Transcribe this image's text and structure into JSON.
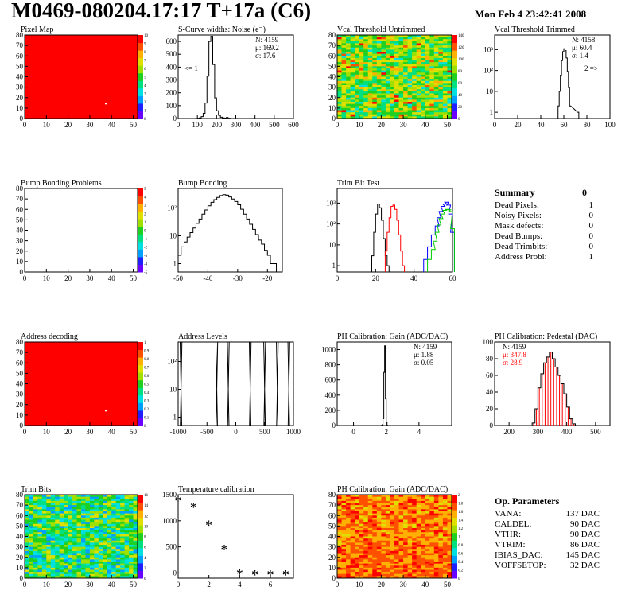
{
  "header": {
    "title": "M0469-080204.17:17 T+17a (C6)",
    "date": "Mon Feb  4 23:42:41 2008"
  },
  "summary": {
    "title": "Summary",
    "total": "0",
    "rows": [
      {
        "label": "Dead Pixels:",
        "value": "1"
      },
      {
        "label": "Noisy Pixels:",
        "value": "0"
      },
      {
        "label": "Mask defects:",
        "value": "0"
      },
      {
        "label": "Dead Bumps:",
        "value": "0"
      },
      {
        "label": "Dead Trimbits:",
        "value": "0"
      },
      {
        "label": "Address Probl:",
        "value": "1"
      }
    ]
  },
  "op_params": {
    "title": "Op. Parameters",
    "rows": [
      {
        "label": "VANA:",
        "value": "137 DAC"
      },
      {
        "label": "CALDEL:",
        "value": "90 DAC"
      },
      {
        "label": "VTHR:",
        "value": "90 DAC"
      },
      {
        "label": "VTRIM:",
        "value": "86 DAC"
      },
      {
        "label": "IBIAS_DAC:",
        "value": "145 DAC"
      },
      {
        "label": "VOFFSETOP:",
        "value": "32 DAC"
      }
    ]
  },
  "colors": {
    "palette": [
      "#6a00ff",
      "#2020ff",
      "#00a0ff",
      "#00e0e0",
      "#00e080",
      "#20d020",
      "#a0e000",
      "#e0e000",
      "#ffb000",
      "#ff5000",
      "#ff0000"
    ],
    "red": "#ff0000",
    "black": "#000000",
    "green": "#00cc00",
    "blue": "#0000ff"
  },
  "chart_data": [
    {
      "id": "pixel-map",
      "type": "heatmap",
      "title": "Pixel Map",
      "xlim": [
        0,
        52
      ],
      "ylim": [
        0,
        80
      ],
      "xticks": [
        "0",
        "10",
        "20",
        "30",
        "40",
        "50"
      ],
      "yticks": [
        "0",
        "10",
        "20",
        "30",
        "40",
        "50",
        "60",
        "70",
        "80"
      ],
      "zlim": [
        0,
        10
      ],
      "zticks": [
        "0",
        "1",
        "2",
        "3",
        "4",
        "5",
        "6",
        "7",
        "8",
        "9",
        "10"
      ],
      "fill": "uniform-max",
      "dead_pixel": [
        37,
        15
      ]
    },
    {
      "id": "scurve",
      "type": "histogram",
      "title": "S-Curve widths: Noise (e⁻)",
      "xlim": [
        0,
        600
      ],
      "ylim": [
        0,
        650
      ],
      "xticks": [
        "0",
        "100",
        "200",
        "300",
        "400",
        "500",
        "600"
      ],
      "yticks": [
        "0",
        "100",
        "200",
        "300",
        "400",
        "500",
        "600"
      ],
      "stats": {
        "N": "4159",
        "mu": "169.2",
        "sigma": "17.6"
      },
      "annotation": "<= 1",
      "bins_x": [
        100,
        110,
        120,
        130,
        140,
        150,
        160,
        170,
        180,
        190,
        200,
        210,
        220,
        230,
        240,
        250,
        260,
        270
      ],
      "bins_y": [
        2,
        5,
        15,
        40,
        120,
        330,
        600,
        640,
        420,
        160,
        60,
        25,
        10,
        5,
        3,
        8,
        2,
        0
      ]
    },
    {
      "id": "vcal-untrimmed",
      "type": "heatmap",
      "title": "Vcal Threshold Untrimmed",
      "xlim": [
        0,
        52
      ],
      "ylim": [
        0,
        80
      ],
      "xticks": [
        "0",
        "10",
        "20",
        "30",
        "40",
        "50"
      ],
      "yticks": [
        "0",
        "10",
        "20",
        "30",
        "40",
        "50",
        "60",
        "70",
        "80"
      ],
      "zlim": [
        0,
        140
      ],
      "zticks": [
        "0",
        "20",
        "40",
        "60",
        "80",
        "100",
        "120",
        "140"
      ],
      "fill": "noise-yellow"
    },
    {
      "id": "vcal-trimmed",
      "type": "histogram",
      "title": "Vcal Threshold Trimmed",
      "xlim": [
        0,
        100
      ],
      "log_y": true,
      "xticks": [
        "0",
        "20",
        "40",
        "60",
        "80",
        "100"
      ],
      "yticks": [
        "1",
        "10",
        "10²",
        "10³"
      ],
      "stats": {
        "N": "4158",
        "mu": "60.4",
        "sigma": "1.4"
      },
      "annotation": "2 =>",
      "bins_x": [
        55,
        56,
        57,
        58,
        59,
        60,
        61,
        62,
        63,
        64,
        65,
        72
      ],
      "bins_y": [
        2,
        10,
        60,
        300,
        800,
        1100,
        900,
        400,
        90,
        15,
        2,
        1
      ]
    },
    {
      "id": "bump-problems",
      "type": "heatmap",
      "title": "Bump Bonding Problems",
      "xlim": [
        0,
        52
      ],
      "ylim": [
        0,
        80
      ],
      "xticks": [
        "0",
        "10",
        "20",
        "30",
        "40",
        "50"
      ],
      "yticks": [
        "0",
        "10",
        "20",
        "30",
        "40",
        "50",
        "60",
        "70",
        "80"
      ],
      "zlim": [
        -5,
        5
      ],
      "zticks": [
        "-5",
        "-4",
        "-3",
        "-2",
        "-1",
        "0",
        "1",
        "2",
        "3",
        "4",
        "5"
      ],
      "fill": "empty"
    },
    {
      "id": "bump-bonding",
      "type": "histogram",
      "title": "Bump Bonding",
      "xlim": [
        -50,
        -15
      ],
      "log_y": true,
      "xticks": [
        "-50",
        "-40",
        "-30",
        "-20"
      ],
      "yticks": [
        "1",
        "10",
        "10²"
      ],
      "bins_x": [
        -50,
        -49,
        -48,
        -47,
        -46,
        -45,
        -44,
        -43,
        -42,
        -41,
        -40,
        -39,
        -38,
        -37,
        -36,
        -35,
        -34,
        -33,
        -32,
        -31,
        -30,
        -29,
        -28,
        -27,
        -26,
        -25,
        -24,
        -23,
        -22,
        -21,
        -20,
        -19,
        -18
      ],
      "bins_y": [
        2,
        4,
        6,
        9,
        13,
        19,
        28,
        40,
        60,
        85,
        120,
        160,
        200,
        240,
        280,
        300,
        290,
        250,
        210,
        170,
        130,
        90,
        60,
        40,
        26,
        17,
        11,
        7,
        5,
        3,
        2,
        1,
        1
      ]
    },
    {
      "id": "trim-bit-test",
      "type": "histogram",
      "title": "Trim Bit Test",
      "xlim": [
        0,
        60
      ],
      "log_y": true,
      "xticks": [
        "0",
        "20",
        "40",
        "60"
      ],
      "yticks": [
        "1",
        "10",
        "10²",
        "10³"
      ],
      "series": [
        {
          "color": "#000000",
          "bins_x": [
            18,
            19,
            20,
            21,
            22,
            23,
            24,
            25,
            26
          ],
          "bins_y": [
            3,
            40,
            300,
            900,
            600,
            150,
            20,
            3,
            1
          ]
        },
        {
          "color": "#ff0000",
          "bins_x": [
            25,
            26,
            27,
            28,
            29,
            30,
            31,
            32,
            33,
            34
          ],
          "bins_y": [
            5,
            40,
            200,
            700,
            800,
            500,
            150,
            30,
            5,
            1
          ]
        },
        {
          "color": "#0000ff",
          "bins_x": [
            45,
            47,
            49,
            51,
            52,
            53,
            54,
            55,
            56,
            57,
            58,
            59
          ],
          "bins_y": [
            2,
            8,
            30,
            80,
            200,
            400,
            700,
            900,
            1100,
            800,
            300,
            40
          ]
        },
        {
          "color": "#00cc00",
          "bins_x": [
            47,
            49,
            50,
            51,
            52,
            53,
            54,
            55,
            56,
            57,
            58,
            59
          ],
          "bins_y": [
            2,
            6,
            15,
            40,
            90,
            180,
            300,
            450,
            500,
            480,
            400,
            60
          ]
        }
      ]
    },
    {
      "id": "address-decoding",
      "type": "heatmap",
      "title": "Address decoding",
      "xlim": [
        0,
        52
      ],
      "ylim": [
        0,
        80
      ],
      "xticks": [
        "0",
        "10",
        "20",
        "30",
        "40",
        "50"
      ],
      "yticks": [
        "0",
        "10",
        "20",
        "30",
        "40",
        "50",
        "60",
        "70",
        "80"
      ],
      "zlim": [
        0,
        1
      ],
      "zticks": [
        "0",
        "0.1",
        "0.2",
        "0.3",
        "0.4",
        "0.5",
        "0.6",
        "0.7",
        "0.8",
        "0.9",
        "1"
      ],
      "fill": "uniform-max",
      "dead_pixel": [
        37,
        15
      ]
    },
    {
      "id": "address-levels",
      "type": "histogram",
      "title": "Address Levels",
      "xlim": [
        -1000,
        1000
      ],
      "log_y": true,
      "xticks": [
        "-1000",
        "-500",
        "0",
        "500",
        "1000"
      ],
      "yticks": [
        "1",
        "10",
        "10²"
      ],
      "peaks": [
        -950,
        -330,
        -130,
        250,
        500,
        720,
        920
      ],
      "peak_height": 600
    },
    {
      "id": "ph-gain",
      "type": "histogram",
      "title": "PH Calibration: Gain (ADC/DAC)",
      "xlim": [
        -1,
        6
      ],
      "ylim": [
        0,
        1100
      ],
      "xticks": [
        "0",
        "2",
        "4"
      ],
      "yticks": [
        "0",
        "200",
        "400",
        "600",
        "800",
        "1000"
      ],
      "stats": {
        "N": "4159",
        "mu": "1.88",
        "sigma": "0.05"
      },
      "bins_x": [
        1.7,
        1.75,
        1.8,
        1.85,
        1.9,
        1.95,
        2.0,
        2.05
      ],
      "bins_y": [
        2,
        10,
        90,
        700,
        1050,
        350,
        40,
        3
      ]
    },
    {
      "id": "ph-pedestal",
      "type": "histogram",
      "title": "PH Calibration: Pedestal (DAC)",
      "xlim": [
        150,
        550
      ],
      "ylim": [
        0,
        100
      ],
      "xticks": [
        "200",
        "300",
        "400",
        "500"
      ],
      "yticks": [
        "0",
        "20",
        "40",
        "60",
        "80",
        "100"
      ],
      "stats": {
        "N": "4159",
        "mu": "347.8",
        "sigma": "28.9"
      },
      "bins_x": [
        280,
        290,
        300,
        310,
        320,
        330,
        340,
        350,
        360,
        370,
        380,
        390,
        400,
        410,
        420
      ],
      "bins_y": [
        3,
        20,
        45,
        62,
        75,
        82,
        88,
        80,
        70,
        60,
        50,
        38,
        22,
        8,
        2
      ]
    },
    {
      "id": "trim-bits",
      "type": "heatmap",
      "title": "Trim Bits",
      "xlim": [
        0,
        52
      ],
      "ylim": [
        0,
        80
      ],
      "xticks": [
        "0",
        "10",
        "20",
        "30",
        "40",
        "50"
      ],
      "yticks": [
        "0",
        "10",
        "20",
        "30",
        "40",
        "50",
        "60",
        "70",
        "80"
      ],
      "zlim": [
        0,
        16
      ],
      "zticks": [
        "0",
        "2",
        "4",
        "6",
        "8",
        "10",
        "12",
        "14",
        "16"
      ],
      "fill": "noise-green"
    },
    {
      "id": "temperature",
      "type": "scatter",
      "title": "Temperature calibration",
      "xlim": [
        0,
        7.5
      ],
      "ylim": [
        -100,
        1500
      ],
      "xticks": [
        "0",
        "2",
        "4",
        "6"
      ],
      "yticks": [
        "0",
        "500",
        "1000",
        "1500"
      ],
      "x": [
        0,
        1,
        2,
        3,
        4,
        5,
        6,
        7
      ],
      "y": [
        1380,
        1260,
        910,
        450,
        -20,
        -40,
        -40,
        -40
      ]
    },
    {
      "id": "ph-gain-map",
      "type": "heatmap",
      "title": "PH Calibration: Gain (ADC/DAC)",
      "xlim": [
        0,
        52
      ],
      "ylim": [
        0,
        80
      ],
      "xticks": [
        "0",
        "10",
        "20",
        "30",
        "40",
        "50"
      ],
      "yticks": [
        "0",
        "10",
        "20",
        "30",
        "40",
        "50",
        "60",
        "70",
        "80"
      ],
      "zlim": [
        0,
        2
      ],
      "zticks": [
        "0",
        "0.2",
        "0.4",
        "0.6",
        "0.8",
        "1",
        "1.2",
        "1.4",
        "1.6",
        "1.8",
        "2"
      ],
      "fill": "noise-red"
    }
  ]
}
